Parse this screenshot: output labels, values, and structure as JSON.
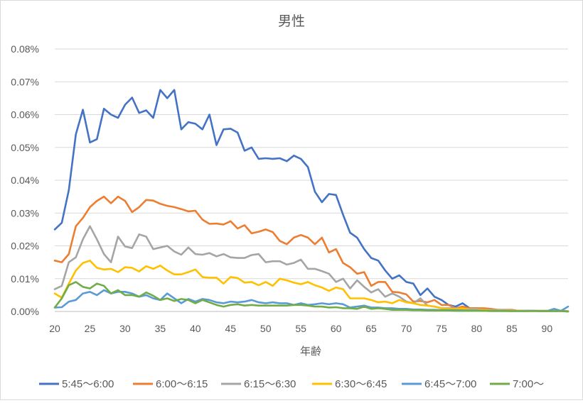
{
  "chart_data": {
    "type": "line",
    "title": "男性",
    "xlabel": "年齢",
    "ylabel": "",
    "xlim": [
      20,
      93
    ],
    "ylim": [
      0,
      0.08
    ],
    "x_ticks": [
      20,
      25,
      30,
      35,
      40,
      45,
      50,
      55,
      60,
      65,
      70,
      75,
      80,
      85,
      90
    ],
    "y_ticks": [
      "0.00%",
      "0.01%",
      "0.02%",
      "0.03%",
      "0.04%",
      "0.05%",
      "0.06%",
      "0.07%",
      "0.08%"
    ],
    "grid": "horizontal",
    "legend_position": "bottom",
    "x": [
      20,
      21,
      22,
      23,
      24,
      25,
      26,
      27,
      28,
      29,
      30,
      31,
      32,
      33,
      34,
      35,
      36,
      37,
      38,
      39,
      40,
      41,
      42,
      43,
      44,
      45,
      46,
      47,
      48,
      49,
      50,
      51,
      52,
      53,
      54,
      55,
      56,
      57,
      58,
      59,
      60,
      61,
      62,
      63,
      64,
      65,
      66,
      67,
      68,
      69,
      70,
      71,
      72,
      73,
      74,
      75,
      76,
      77,
      78,
      79,
      80,
      81,
      82,
      83,
      84,
      85,
      86,
      87,
      88,
      89,
      90,
      91,
      92,
      93
    ],
    "series": [
      {
        "name": "5:45～6:00",
        "color": "#4472c4",
        "values": [
          0.025,
          0.027,
          0.037,
          0.054,
          0.0615,
          0.0515,
          0.0525,
          0.0618,
          0.06,
          0.059,
          0.063,
          0.0652,
          0.0605,
          0.0613,
          0.059,
          0.0675,
          0.065,
          0.0675,
          0.0555,
          0.0577,
          0.0572,
          0.0555,
          0.06,
          0.0507,
          0.0555,
          0.0557,
          0.0545,
          0.049,
          0.05,
          0.0465,
          0.0467,
          0.0465,
          0.0467,
          0.0458,
          0.0475,
          0.0465,
          0.044,
          0.0365,
          0.0333,
          0.0358,
          0.0355,
          0.0295,
          0.024,
          0.0225,
          0.019,
          0.0163,
          0.0155,
          0.0125,
          0.01,
          0.011,
          0.009,
          0.0085,
          0.005,
          0.007,
          0.0045,
          0.0035,
          0.002,
          0.0015,
          0.0025,
          0.001,
          0.001,
          0.0008,
          0.0005,
          0.0004,
          0.0004,
          0.0003,
          0.0002,
          0.0002,
          0.0002,
          0.0001,
          0.0001,
          0.0001,
          0.0001,
          0.0
        ]
      },
      {
        "name": "6:00～6:15",
        "color": "#ed7d31",
        "values": [
          0.0155,
          0.015,
          0.0175,
          0.026,
          0.0285,
          0.0318,
          0.0337,
          0.035,
          0.033,
          0.035,
          0.0337,
          0.0303,
          0.0318,
          0.034,
          0.0338,
          0.0328,
          0.0322,
          0.0318,
          0.0312,
          0.0305,
          0.0307,
          0.028,
          0.0267,
          0.0268,
          0.0265,
          0.0275,
          0.0253,
          0.0263,
          0.0238,
          0.0243,
          0.025,
          0.0242,
          0.0215,
          0.0205,
          0.0225,
          0.0233,
          0.0225,
          0.0205,
          0.0225,
          0.018,
          0.019,
          0.0148,
          0.0135,
          0.0115,
          0.012,
          0.0078,
          0.009,
          0.009,
          0.006,
          0.0058,
          0.0052,
          0.003,
          0.0032,
          0.0028,
          0.0035,
          0.002,
          0.002,
          0.001,
          0.0015,
          0.001,
          0.001,
          0.001,
          0.0008,
          0.0005,
          0.0005,
          0.0005,
          0.0002,
          0.0002,
          0.0002,
          0.0002,
          0.0002,
          0.0002,
          0.0002,
          0.0001
        ]
      },
      {
        "name": "6:15～6:30",
        "color": "#a5a5a5",
        "values": [
          0.0068,
          0.0078,
          0.015,
          0.0165,
          0.022,
          0.026,
          0.022,
          0.0175,
          0.015,
          0.0228,
          0.0198,
          0.0193,
          0.0235,
          0.0228,
          0.019,
          0.0195,
          0.02,
          0.0183,
          0.0173,
          0.0195,
          0.0175,
          0.0173,
          0.0178,
          0.0168,
          0.0175,
          0.0165,
          0.0163,
          0.0163,
          0.0172,
          0.0175,
          0.015,
          0.0153,
          0.0153,
          0.0143,
          0.0148,
          0.0158,
          0.013,
          0.013,
          0.0123,
          0.0115,
          0.009,
          0.01,
          0.007,
          0.0095,
          0.0075,
          0.0058,
          0.0068,
          0.0045,
          0.0055,
          0.0045,
          0.003,
          0.0025,
          0.004,
          0.0018,
          0.0015,
          0.001,
          0.001,
          0.001,
          0.0008,
          0.0008,
          0.0008,
          0.0005,
          0.0005,
          0.0004,
          0.0004,
          0.0003,
          0.0002,
          0.0002,
          0.0002,
          0.0002,
          0.0002,
          0.0001,
          0.0001,
          0.0001
        ]
      },
      {
        "name": "6:30～6:45",
        "color": "#ffc000",
        "values": [
          0.0055,
          0.0042,
          0.0085,
          0.0125,
          0.0148,
          0.0155,
          0.0133,
          0.0128,
          0.013,
          0.012,
          0.0135,
          0.0133,
          0.0122,
          0.0138,
          0.013,
          0.014,
          0.0125,
          0.0113,
          0.0113,
          0.012,
          0.0128,
          0.0105,
          0.0103,
          0.0103,
          0.0085,
          0.0105,
          0.0102,
          0.0088,
          0.009,
          0.008,
          0.009,
          0.0078,
          0.01,
          0.0095,
          0.0088,
          0.0083,
          0.009,
          0.008,
          0.0073,
          0.0063,
          0.0073,
          0.0068,
          0.004,
          0.004,
          0.004,
          0.0035,
          0.0028,
          0.003,
          0.0025,
          0.0035,
          0.0028,
          0.0025,
          0.002,
          0.0018,
          0.0015,
          0.001,
          0.0008,
          0.0008,
          0.001,
          0.0005,
          0.0005,
          0.0005,
          0.0003,
          0.0003,
          0.0003,
          0.0002,
          0.0002,
          0.0001,
          0.0001,
          0.0001,
          0.0001,
          0.0001,
          0.0001,
          0.0
        ]
      },
      {
        "name": "6:45～7:00",
        "color": "#5b9bd5",
        "values": [
          0.0012,
          0.0013,
          0.003,
          0.0035,
          0.0055,
          0.006,
          0.005,
          0.0065,
          0.0055,
          0.006,
          0.006,
          0.0055,
          0.0045,
          0.005,
          0.004,
          0.0035,
          0.0055,
          0.004,
          0.0025,
          0.0038,
          0.003,
          0.0038,
          0.0035,
          0.0028,
          0.0025,
          0.003,
          0.0028,
          0.003,
          0.0035,
          0.0028,
          0.0025,
          0.0028,
          0.0025,
          0.0025,
          0.002,
          0.0025,
          0.002,
          0.0022,
          0.0025,
          0.0022,
          0.0025,
          0.0022,
          0.0012,
          0.0015,
          0.0018,
          0.0012,
          0.0012,
          0.001,
          0.001,
          0.0008,
          0.0008,
          0.0006,
          0.0006,
          0.0005,
          0.0005,
          0.0004,
          0.0004,
          0.0004,
          0.0003,
          0.0003,
          0.0003,
          0.0002,
          0.0002,
          0.0002,
          0.0002,
          0.0001,
          0.0001,
          0.0001,
          0.0002,
          0.0001,
          0.0001,
          0.0008,
          0.0002,
          0.0015
        ]
      },
      {
        "name": "7:00～",
        "color": "#70ad47",
        "values": [
          0.0012,
          0.004,
          0.008,
          0.009,
          0.0075,
          0.007,
          0.0085,
          0.0078,
          0.0055,
          0.0065,
          0.005,
          0.005,
          0.0045,
          0.0058,
          0.0048,
          0.0035,
          0.004,
          0.0032,
          0.0038,
          0.0035,
          0.0025,
          0.0035,
          0.0028,
          0.002,
          0.0015,
          0.002,
          0.0022,
          0.0018,
          0.002,
          0.0018,
          0.0018,
          0.0018,
          0.0018,
          0.0018,
          0.002,
          0.002,
          0.0018,
          0.0015,
          0.0015,
          0.0012,
          0.0013,
          0.001,
          0.001,
          0.0008,
          0.0015,
          0.0008,
          0.001,
          0.0008,
          0.0005,
          0.0005,
          0.0005,
          0.0004,
          0.0004,
          0.0003,
          0.0003,
          0.0003,
          0.0003,
          0.0002,
          0.0002,
          0.0002,
          0.0002,
          0.0002,
          0.0001,
          0.0001,
          0.0001,
          0.0001,
          0.0001,
          0.0001,
          0.0001,
          0.0001,
          0.0001,
          0.0001,
          0.0001,
          0.0
        ]
      }
    ]
  }
}
